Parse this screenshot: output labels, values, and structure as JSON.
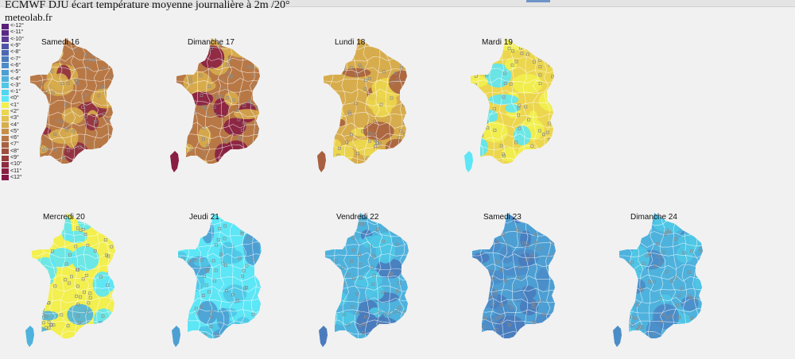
{
  "title": "ECMWF DJU écart température moyenne journalière à 2m /20°",
  "source": "meteolab.fr",
  "legend": [
    {
      "label": "<-12°",
      "color": "#5a1f79"
    },
    {
      "label": "<-11°",
      "color": "#5a2887"
    },
    {
      "label": "<-10°",
      "color": "#593b96"
    },
    {
      "label": "<-9°",
      "color": "#4f55a6"
    },
    {
      "label": "<-8°",
      "color": "#4a68b2"
    },
    {
      "label": "<-7°",
      "color": "#4a7bbd"
    },
    {
      "label": "<-6°",
      "color": "#4b8cc8"
    },
    {
      "label": "<-5°",
      "color": "#4d9fd3"
    },
    {
      "label": "<-4°",
      "color": "#4eb2dd"
    },
    {
      "label": "<-3°",
      "color": "#4fc6e6"
    },
    {
      "label": "<-1°",
      "color": "#50d6ee"
    },
    {
      "label": "<0°",
      "color": "#5ce6f6"
    },
    {
      "label": "<1°",
      "color": "#f2ef4e"
    },
    {
      "label": "<2°",
      "color": "#ecd64e"
    },
    {
      "label": "<3°",
      "color": "#e2c14e"
    },
    {
      "label": "<4°",
      "color": "#d7ac4c"
    },
    {
      "label": "<5°",
      "color": "#c79048"
    },
    {
      "label": "<6°",
      "color": "#b87845"
    },
    {
      "label": "<7°",
      "color": "#a96040"
    },
    {
      "label": "<8°",
      "color": "#a04e3e"
    },
    {
      "label": "<9°",
      "color": "#963c3c"
    },
    {
      "label": "<10°",
      "color": "#8f2b40"
    },
    {
      "label": "<11°",
      "color": "#881e42"
    },
    {
      "label": "<12°",
      "color": "#831547"
    }
  ],
  "maps": [
    {
      "day": "Samedi 16",
      "dominant": "<6°",
      "secondary": "<4°",
      "accent": "<10°",
      "corsica": false
    },
    {
      "day": "Dimanche 17",
      "dominant": "<6°",
      "secondary": "<4°",
      "accent": "<11°",
      "corsica": true
    },
    {
      "day": "Lundi 18",
      "dominant": "<4°",
      "secondary": "<2°",
      "accent": "<7°",
      "corsica": true
    },
    {
      "day": "Mardi 19",
      "dominant": "<2°",
      "secondary": "<1°",
      "accent": "<0°",
      "corsica": true
    },
    {
      "day": "Mercredi 20",
      "dominant": "<1°",
      "secondary": "<0°",
      "accent": "<-4°",
      "corsica": true
    },
    {
      "day": "Jeudi 21",
      "dominant": "<0°",
      "secondary": "<-3°",
      "accent": "<-5°",
      "corsica": true
    },
    {
      "day": "Vendredi 22",
      "dominant": "<-4°",
      "secondary": "<-3°",
      "accent": "<-7°",
      "corsica": true
    },
    {
      "day": "Samedi 23",
      "dominant": "<-5°",
      "secondary": "<-6°",
      "accent": "<-7°",
      "corsica": false
    },
    {
      "day": "Dimanche 24",
      "dominant": "<-4°",
      "secondary": "<-3°",
      "accent": "<-6°",
      "corsica": true
    }
  ]
}
